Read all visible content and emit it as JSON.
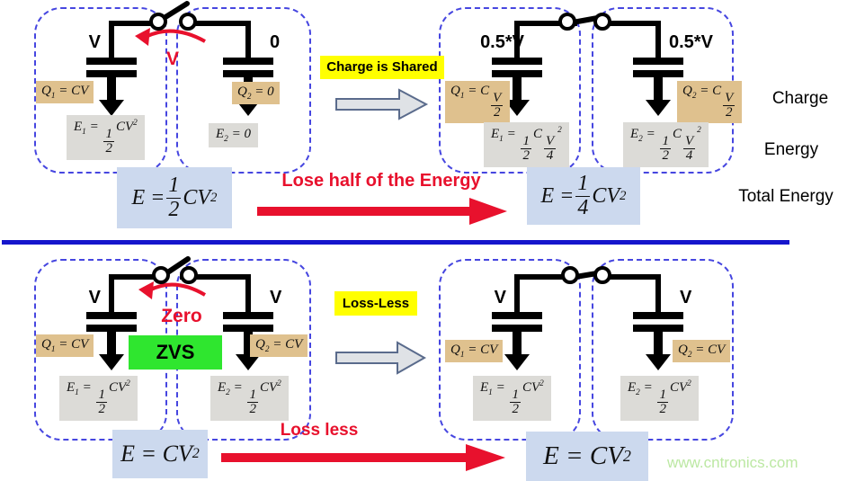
{
  "cells": [
    {
      "voltage": "V",
      "q": "q1_cv",
      "e": "e1_half"
    },
    {
      "voltage": "0",
      "q": "q2_0",
      "e": "e2_0"
    },
    {
      "voltage": "0.5*V",
      "q": "q1_cv2",
      "e": "e1_quarter"
    },
    {
      "voltage": "0.5*V",
      "q": "q2_cv2",
      "e": "e2_quarter"
    },
    {
      "voltage": "V",
      "q": "q1_cv",
      "e": "e1_half"
    },
    {
      "voltage": "V",
      "q": "q2_cv",
      "e": "e2_half"
    },
    {
      "voltage": "V",
      "q": "q1_cv",
      "e": "e1_half"
    },
    {
      "voltage": "V",
      "q": "q2_cv",
      "e": "e2_half"
    }
  ],
  "formulas": {
    "q1_cv": [
      {
        "t": "Q"
      },
      {
        "b": "1"
      },
      {
        "t": " = CV"
      }
    ],
    "q2_cv": [
      {
        "t": "Q"
      },
      {
        "b": "2"
      },
      {
        "t": " = CV"
      }
    ],
    "q2_0": [
      {
        "t": "Q"
      },
      {
        "b": "2"
      },
      {
        "t": " = 0"
      }
    ],
    "q1_cv2": [
      {
        "t": "Q"
      },
      {
        "b": "1"
      },
      {
        "t": " = C"
      },
      {
        "f": [
          "V",
          "2"
        ]
      }
    ],
    "q2_cv2": [
      {
        "t": "Q"
      },
      {
        "b": "2"
      },
      {
        "t": " = C"
      },
      {
        "f": [
          "V",
          "2"
        ]
      }
    ],
    "e1_half": [
      {
        "t": "E"
      },
      {
        "b": "1"
      },
      {
        "t": " = "
      },
      {
        "f": [
          "1",
          "2"
        ]
      },
      {
        "t": "CV"
      },
      {
        "p": "2"
      }
    ],
    "e2_half": [
      {
        "t": "E"
      },
      {
        "b": "2"
      },
      {
        "t": " = "
      },
      {
        "f": [
          "1",
          "2"
        ]
      },
      {
        "t": "CV"
      },
      {
        "p": "2"
      }
    ],
    "e2_0": [
      {
        "t": "E"
      },
      {
        "b": "2"
      },
      {
        "t": " = 0"
      }
    ],
    "e1_quarter": [
      {
        "t": "E"
      },
      {
        "b": "1"
      },
      {
        "t": " = "
      },
      {
        "f": [
          "1",
          "2"
        ]
      },
      {
        "t": "C"
      },
      {
        "f": [
          "V",
          "4"
        ]
      },
      {
        "p": "2"
      }
    ],
    "e2_quarter": [
      {
        "t": "E"
      },
      {
        "b": "2"
      },
      {
        "t": " = "
      },
      {
        "f": [
          "1",
          "2"
        ]
      },
      {
        "t": "C"
      },
      {
        "f": [
          "V",
          "4"
        ]
      },
      {
        "p": "2"
      }
    ],
    "total_half": [
      {
        "t": "E = "
      },
      {
        "f": [
          "1",
          "2"
        ]
      },
      {
        "t": "CV"
      },
      {
        "p": "2"
      }
    ],
    "total_quarter": [
      {
        "t": "E = "
      },
      {
        "f": [
          "1",
          "4"
        ]
      },
      {
        "t": "CV"
      },
      {
        "p": "2"
      }
    ],
    "total_cv2": [
      {
        "t": "E = CV"
      },
      {
        "p": "2"
      }
    ]
  },
  "annotations": {
    "top_arc_label": "V",
    "bottom_arc_label": "Zero",
    "zvs": "ZVS",
    "charge_shared": "Charge is Shared",
    "loss_less_badge": "Loss-Less",
    "lose_half": "Lose half of the Energy",
    "loss_less_text": "Loss less"
  },
  "totals": {
    "top_left": "total_half",
    "top_right": "total_quarter",
    "bottom_left": "total_cv2",
    "bottom_right": "total_cv2"
  },
  "side_labels": {
    "charge": "Charge",
    "energy": "Energy",
    "total_energy": "Total Energy"
  },
  "watermark": "www.cntronics.com",
  "colors": {
    "red": "#e8112d",
    "yellow": "#ffff00",
    "green": "#2fe62f",
    "tan": "#dfc18e",
    "gray_box": "#dcdbd7",
    "blue_box": "#ccd9ee",
    "dash_blue": "#4646e0",
    "divider_blue": "#1515cc",
    "wire_black": "#000000",
    "arrow_gray_fill": "#dfe2e6",
    "arrow_gray_border": "#5a6b8c",
    "watermark_green": "#bce8a3"
  }
}
